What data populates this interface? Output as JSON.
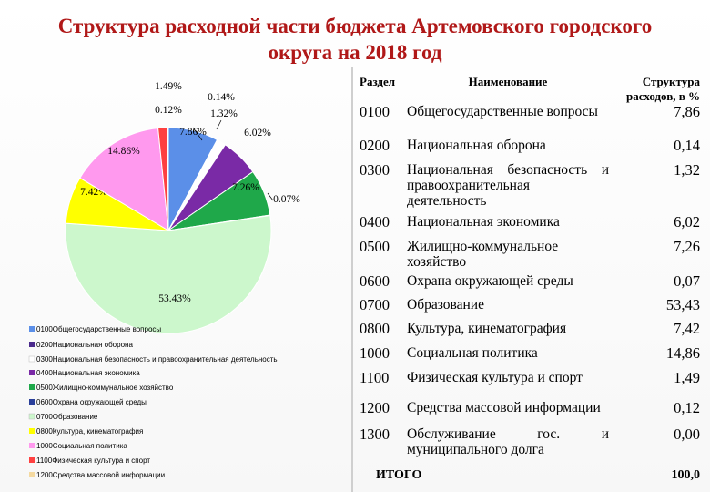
{
  "title_line1": "Структура расходной части бюджета Артемовского городского",
  "title_line2": "округа на 2018 год",
  "table": {
    "headers": [
      "Раздел",
      "Наименование",
      "Структура",
      "расходов, в %"
    ],
    "rows": [
      {
        "code": "0100",
        "name": "Общегосударственные вопросы",
        "value": "7,86"
      },
      {
        "code": "0200",
        "name": "Национальная оборона",
        "value": "0,14"
      },
      {
        "code": "0300",
        "name": "Национальная безопасность и правоохранительная деятельность",
        "value": "1,32"
      },
      {
        "code": "0400",
        "name": "Национальная экономика",
        "value": "6,02"
      },
      {
        "code": "0500",
        "name": "Жилищно-коммунальное хозяйство",
        "value": "7,26"
      },
      {
        "code": "0600",
        "name": "Охрана окружающей среды",
        "value": "0,07"
      },
      {
        "code": "0700",
        "name": "Образование",
        "value": "53,43"
      },
      {
        "code": "0800",
        "name": "Культура, кинематография",
        "value": "7,42"
      },
      {
        "code": "1000",
        "name": "Социальная политика",
        "value": "14,86"
      },
      {
        "code": "1100",
        "name": "Физическая культура и спорт",
        "value": "1,49"
      },
      {
        "code": "1200",
        "name": "Средства массовой информации",
        "value": "0,12"
      },
      {
        "code": "1300",
        "name": "Обслуживание гос. и муниципального долга",
        "value": "0,00"
      }
    ],
    "total_label": "ИТОГО",
    "total_value": "100,0"
  },
  "chart_data": {
    "type": "pie",
    "slices": [
      {
        "name": "0100Общегосударственные вопросы",
        "value": 7.86,
        "label": "7.86%",
        "color": "#5b8fe8"
      },
      {
        "name": "0200Национальная оборона",
        "value": 0.14,
        "label": "0.14%",
        "color": "#4a2a8c"
      },
      {
        "name": "0300Национальная безопасность и правоохранительная деятельность",
        "value": 1.32,
        "label": "1.32%",
        "color": "#ffffff"
      },
      {
        "name": "0400Национальная экономика",
        "value": 6.02,
        "label": "6.02%",
        "color": "#7a2aa6"
      },
      {
        "name": "0500Жилищно-коммунальное хозяйство",
        "value": 7.26,
        "label": "7.26%",
        "color": "#1fa84a"
      },
      {
        "name": "0600Охрана окружающей среды",
        "value": 0.07,
        "label": "0.07%",
        "color": "#2a3f9a"
      },
      {
        "name": "0700Образование",
        "value": 53.43,
        "label": "53.43%",
        "color": "#ccf7cc"
      },
      {
        "name": "0800Культура, кинематография",
        "value": 7.42,
        "label": "7.42%",
        "color": "#ffff00"
      },
      {
        "name": "1000Социальная политика",
        "value": 14.86,
        "label": "14.86%",
        "color": "#ff99ee"
      },
      {
        "name": "1100Физическая культура и спорт",
        "value": 1.49,
        "label": "1.49%",
        "color": "#ff4040"
      },
      {
        "name": "1200Средства массовой информации",
        "value": 0.12,
        "label": "0.12%",
        "color": "#f4d9a0"
      }
    ],
    "legend_position": "bottom-left"
  }
}
